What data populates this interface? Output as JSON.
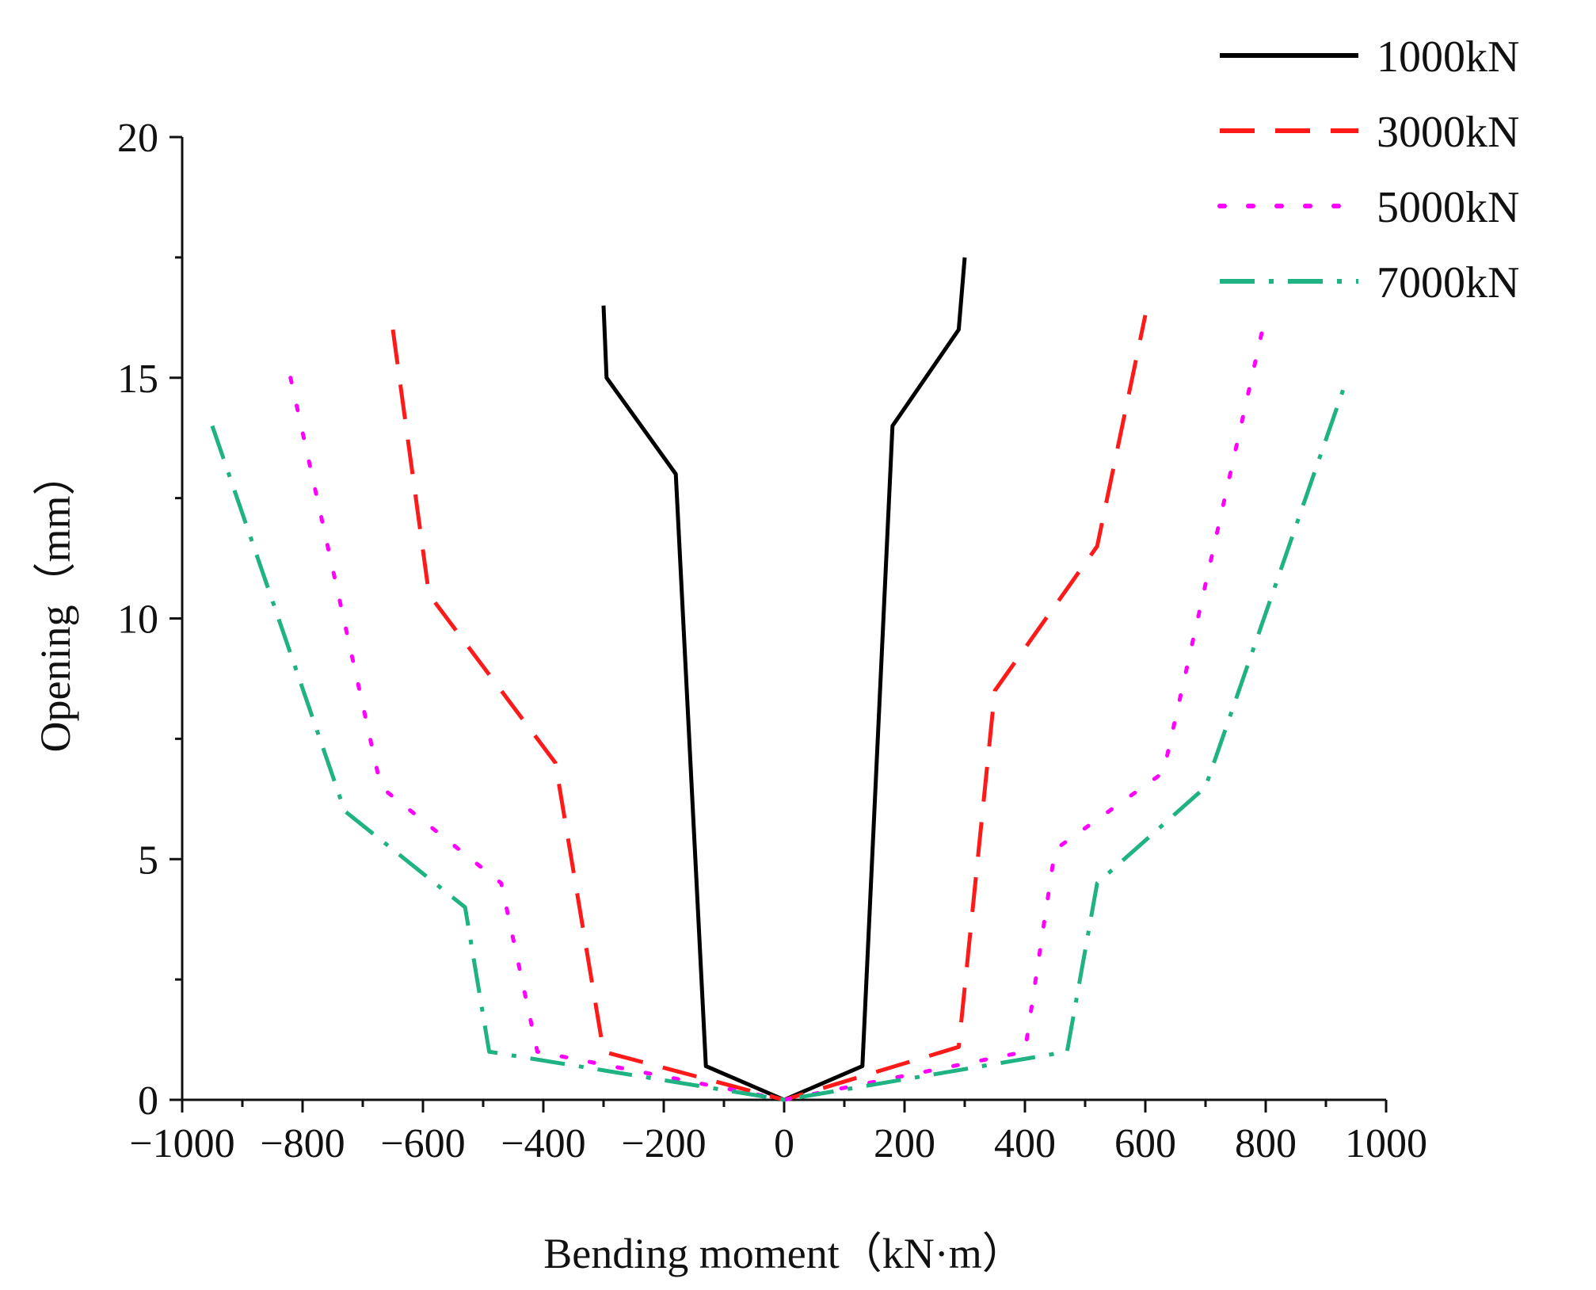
{
  "chart_data": {
    "type": "line",
    "title": "",
    "xlabel": "Bending moment（kN·m）",
    "ylabel": "Opening（mm）",
    "xlim": [
      -1000,
      1000
    ],
    "ylim": [
      0,
      20
    ],
    "x_ticks": [
      -1000,
      -800,
      -600,
      -400,
      -200,
      0,
      200,
      400,
      600,
      800,
      1000
    ],
    "x_tick_labels": [
      "−1000",
      "−800",
      "−600",
      "−400",
      "−200",
      "0",
      "200",
      "400",
      "600",
      "800",
      "1000"
    ],
    "y_ticks": [
      0,
      5,
      10,
      15,
      20
    ],
    "y_tick_labels": [
      "0",
      "5",
      "10",
      "15",
      "20"
    ],
    "grid": false,
    "legend_position": "top-right",
    "series": [
      {
        "name": "1000kN",
        "color": "#000000",
        "style": "solid",
        "points": [
          [
            -300,
            16.5
          ],
          [
            -295,
            15.0
          ],
          [
            -180,
            13.0
          ],
          [
            -130,
            0.7
          ],
          [
            0,
            0
          ],
          [
            130,
            0.7
          ],
          [
            180,
            14.0
          ],
          [
            290,
            16.0
          ],
          [
            300,
            17.5
          ]
        ]
      },
      {
        "name": "3000kN",
        "color": "#ff1a1a",
        "style": "dashed",
        "points": [
          [
            -650,
            16.0
          ],
          [
            -590,
            10.5
          ],
          [
            -380,
            7.0
          ],
          [
            -300,
            1.0
          ],
          [
            0,
            0
          ],
          [
            290,
            1.1
          ],
          [
            350,
            8.5
          ],
          [
            520,
            11.5
          ],
          [
            600,
            16.3
          ]
        ]
      },
      {
        "name": "5000kN",
        "color": "#ff00ff",
        "style": "dotted",
        "points": [
          [
            -820,
            15.0
          ],
          [
            -670,
            6.5
          ],
          [
            -470,
            4.5
          ],
          [
            -410,
            1.0
          ],
          [
            0,
            0
          ],
          [
            400,
            1.0
          ],
          [
            450,
            5.2
          ],
          [
            630,
            6.8
          ],
          [
            800,
            16.3
          ]
        ]
      },
      {
        "name": "7000kN",
        "color": "#1fb283",
        "style": "dash-dot",
        "points": [
          [
            -950,
            14.0
          ],
          [
            -730,
            6.0
          ],
          [
            -530,
            4.0
          ],
          [
            -490,
            1.0
          ],
          [
            0,
            0
          ],
          [
            470,
            1.0
          ],
          [
            520,
            4.5
          ],
          [
            700,
            6.5
          ],
          [
            930,
            14.8
          ]
        ]
      }
    ]
  }
}
